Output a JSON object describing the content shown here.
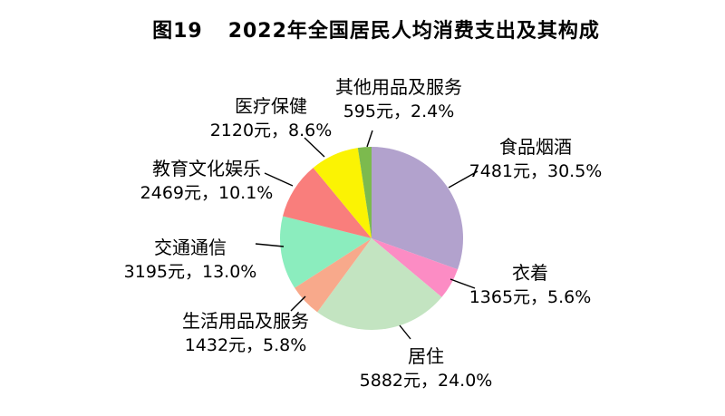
{
  "page": {
    "title_prefix": "图19",
    "title_main": "2022年全国居民人均消费支出及其构成",
    "background": "#ffffff",
    "text_color": "#000000"
  },
  "chart_data": {
    "type": "pie",
    "title": "图19 2022年全国居民人均消费支出及其构成",
    "unit": "元",
    "total_pct": 100.0,
    "start_angle_deg": -90,
    "direction": "clockwise",
    "legend_position": "callout-labels",
    "slices": [
      {
        "name": "食品烟酒",
        "value": 7481,
        "pct": 30.5,
        "label": "7481元，30.5%",
        "color": "#B2A2CD"
      },
      {
        "name": "衣着",
        "value": 1365,
        "pct": 5.6,
        "label": "1365元，5.6%",
        "color": "#FC8CC4"
      },
      {
        "name": "居住",
        "value": 5882,
        "pct": 24.0,
        "label": "5882元，24.0%",
        "color": "#C3E4C1"
      },
      {
        "name": "生活用品及服务",
        "value": 1432,
        "pct": 5.8,
        "label": "1432元，5.8%",
        "color": "#F8A98B"
      },
      {
        "name": "交通通信",
        "value": 3195,
        "pct": 13.0,
        "label": "3195元，13.0%",
        "color": "#8BEDBE"
      },
      {
        "name": "教育文化娱乐",
        "value": 2469,
        "pct": 10.1,
        "label": "2469元，10.1%",
        "color": "#F97E7C"
      },
      {
        "name": "医疗保健",
        "value": 2120,
        "pct": 8.6,
        "label": "2120元，8.6%",
        "color": "#FBF303"
      },
      {
        "name": "其他用品及服务",
        "value": 595,
        "pct": 2.4,
        "label": "595元，2.4%",
        "color": "#7CBA4E"
      }
    ]
  }
}
